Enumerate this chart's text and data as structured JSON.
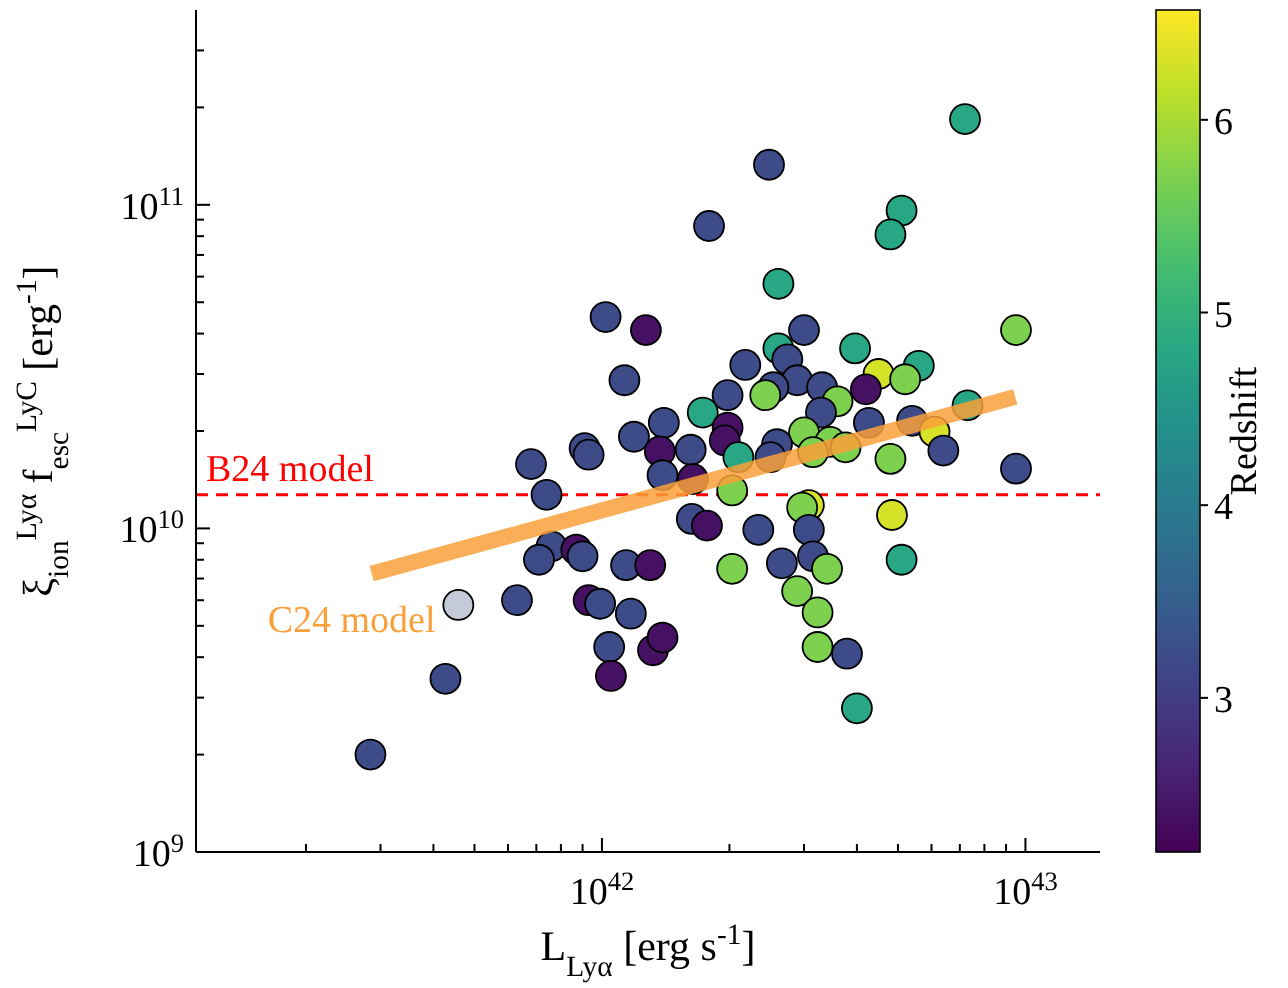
{
  "chart_data": {
    "type": "scatter",
    "xlabel": "L$_{Lyα}$ [erg s$^{-1}$]",
    "ylabel": "ξ$_{ion}$$^{Lyα}$ f$_{esc}$$^{LyC}$ [erg$^{-1}$]",
    "clabel": "Redshift",
    "log": "xy",
    "grid": false,
    "legend": false,
    "xlim": [
      1.1e+41,
      1.5e+43
    ],
    "ylim": [
      1000000000.0,
      400000000000.0
    ],
    "clim": [
      2.2,
      6.57
    ],
    "cticks": [
      3,
      4,
      5,
      6
    ],
    "xticks": [
      {
        "value": 2e+41,
        "label": null
      },
      {
        "value": 3e+41,
        "label": null
      },
      {
        "value": 4e+41,
        "label": null
      },
      {
        "value": 5e+41,
        "label": null
      },
      {
        "value": 6e+41,
        "label": null
      },
      {
        "value": 7e+41,
        "label": null
      },
      {
        "value": 8e+41,
        "label": null
      },
      {
        "value": 9e+41,
        "label": null
      },
      {
        "value": 1e+42,
        "label": "10$^{42}$"
      },
      {
        "value": 2e+42,
        "label": null
      },
      {
        "value": 3e+42,
        "label": null
      },
      {
        "value": 4e+42,
        "label": null
      },
      {
        "value": 5e+42,
        "label": null
      },
      {
        "value": 6e+42,
        "label": null
      },
      {
        "value": 7e+42,
        "label": null
      },
      {
        "value": 8e+42,
        "label": null
      },
      {
        "value": 9e+42,
        "label": null
      },
      {
        "value": 1e+43,
        "label": "10$^{43}$"
      }
    ],
    "yticks": [
      {
        "value": 1000000000.0,
        "label": "10$^{9}$"
      },
      {
        "value": 2000000000.0,
        "label": null
      },
      {
        "value": 3000000000.0,
        "label": null
      },
      {
        "value": 4000000000.0,
        "label": null
      },
      {
        "value": 5000000000.0,
        "label": null
      },
      {
        "value": 6000000000.0,
        "label": null
      },
      {
        "value": 7000000000.0,
        "label": null
      },
      {
        "value": 8000000000.0,
        "label": null
      },
      {
        "value": 9000000000.0,
        "label": null
      },
      {
        "value": 10000000000.0,
        "label": "10$^{10}$"
      },
      {
        "value": 20000000000.0,
        "label": null
      },
      {
        "value": 30000000000.0,
        "label": null
      },
      {
        "value": 40000000000.0,
        "label": null
      },
      {
        "value": 50000000000.0,
        "label": null
      },
      {
        "value": 60000000000.0,
        "label": null
      },
      {
        "value": 70000000000.0,
        "label": null
      },
      {
        "value": 80000000000.0,
        "label": null
      },
      {
        "value": 90000000000.0,
        "label": null
      },
      {
        "value": 100000000000.0,
        "label": "10$^{11}$"
      },
      {
        "value": 200000000000.0,
        "label": null
      },
      {
        "value": 300000000000.0,
        "label": null
      }
    ],
    "ref_lines": [
      {
        "axis": "y",
        "value": 12700000000.0,
        "label": "B24 model",
        "color": "#ff0000",
        "line_style": "dashed"
      }
    ],
    "series": [
      {
        "type": "scatter",
        "marker": "circle",
        "x": [
          7.2e+42,
          2.48e+42,
          1.79e+42,
          5.1e+42,
          4.8e+42,
          2.61e+42,
          1.02e+42,
          1.13e+42,
          1.27e+42,
          1.19e+42,
          9.1e+41,
          9.3e+41,
          6.8e+41,
          7.4e+41,
          7.6e+41,
          7.1e+41,
          8.7e+41,
          9e+41,
          1.14e+42,
          3e+42,
          2.61e+42,
          2.18e+42,
          2.74e+42,
          3.96e+42,
          2.89e+42,
          2.54e+42,
          2.43e+42,
          1.98e+42,
          3.31e+42,
          4.5e+42,
          5.6e+42,
          5.2e+42,
          4.2e+42,
          3.6e+42,
          3.29e+42,
          1.73e+42,
          1.4e+42,
          1.98e+42,
          1.95e+42,
          1.37e+42,
          1.62e+42,
          3e+42,
          4.27e+42,
          5.4e+42,
          7.3e+42,
          9.5e+42,
          9.5e+42,
          6.1e+42,
          6.4e+42,
          3.46e+42,
          3.76e+42,
          2.59e+42,
          2.5e+42,
          3.15e+42,
          2.1e+42,
          4.8e+42,
          1.39e+42,
          1.64e+42,
          2.03e+42,
          3.08e+42,
          2.97e+42,
          4.84e+42,
          1.63e+42,
          1.77e+42,
          2.34e+42,
          3.08e+42,
          1.3e+42,
          2.03e+42,
          2.66e+42,
          3.15e+42,
          3.4e+42,
          5.1e+42,
          4.58e+41,
          6.3e+41,
          9.3e+41,
          9.9e+41,
          1.17e+42,
          2.89e+42,
          3.23e+42,
          1.04e+42,
          1.32e+42,
          1.39e+42,
          1.05e+42,
          3.23e+42,
          3.79e+42,
          4e+42,
          4.27e+41,
          2.84e+41
        ],
        "values": [
          184000000000.0,
          133000000000.0,
          86000000000.0,
          96000000000.0,
          81000000000.0,
          57000000000.0,
          45000000000.0,
          28700000000.0,
          41000000000.0,
          19200000000.0,
          17700000000.0,
          16900000000.0,
          15800000000.0,
          12700000000.0,
          8800000000.0,
          8000000000.0,
          8600000000.0,
          8200000000.0,
          7700000000.0,
          41000000000.0,
          36000000000.0,
          32000000000.0,
          33300000000.0,
          36000000000.0,
          28700000000.0,
          27300000000.0,
          25800000000.0,
          25800000000.0,
          27300000000.0,
          30000000000.0,
          31800000000.0,
          28900000000.0,
          26900000000.0,
          24700000000.0,
          22800000000.0,
          22800000000.0,
          21200000000.0,
          20500000000.0,
          18700000000.0,
          17300000000.0,
          17500000000.0,
          19800000000.0,
          21200000000.0,
          21500000000.0,
          24000000000.0,
          41000000000.0,
          15300000000.0,
          19900000000.0,
          17400000000.0,
          18500000000.0,
          17800000000.0,
          18200000000.0,
          16600000000.0,
          17200000000.0,
          16600000000.0,
          16400000000.0,
          14600000000.0,
          14200000000.0,
          13100000000.0,
          11800000000.0,
          11600000000.0,
          11000000000.0,
          10700000000.0,
          10200000000.0,
          9900000000.0,
          9900000000.0,
          7700000000.0,
          7500000000.0,
          7800000000.0,
          8200000000.0,
          7500000000.0,
          8000000000.0,
          5800000000.0,
          6000000000.0,
          6000000000.0,
          5850000000.0,
          5450000000.0,
          6400000000.0,
          5500000000.0,
          4300000000.0,
          4200000000.0,
          4600000000.0,
          3500000000.0,
          4300000000.0,
          4100000000.0,
          2780000000.0,
          3430000000.0,
          2000000000.0
        ],
        "cvalues": [
          4.8,
          3.2,
          3.2,
          4.8,
          4.8,
          4.8,
          3.2,
          3.2,
          2.4,
          3.2,
          3.2,
          3.2,
          3.2,
          3.2,
          3.2,
          3.2,
          2.4,
          3.2,
          3.2,
          3.2,
          4.8,
          3.2,
          3.2,
          4.8,
          3.2,
          3.2,
          5.7,
          3.2,
          3.2,
          6.3,
          4.8,
          5.7,
          2.4,
          5.7,
          3.2,
          4.8,
          3.2,
          2.4,
          2.4,
          2.4,
          3.2,
          5.7,
          3.2,
          3.2,
          4.8,
          5.7,
          3.2,
          6.3,
          3.2,
          5.7,
          5.7,
          3.2,
          3.2,
          5.7,
          4.8,
          5.7,
          3.2,
          2.4,
          5.7,
          6.3,
          5.7,
          6.3,
          3.2,
          2.4,
          3.2,
          3.2,
          2.4,
          5.7,
          3.2,
          3.2,
          5.7,
          4.8,
          null,
          3.2,
          2.4,
          3.2,
          3.2,
          5.7,
          5.7,
          3.2,
          2.4,
          2.4,
          2.4,
          5.7,
          3.2,
          4.8,
          3.2,
          3.2
        ],
        "colors": [
          null,
          null,
          null,
          null,
          null,
          null,
          null,
          null,
          null,
          null,
          null,
          null,
          null,
          null,
          null,
          null,
          null,
          null,
          null,
          null,
          null,
          null,
          null,
          null,
          null,
          null,
          null,
          null,
          null,
          null,
          null,
          null,
          null,
          null,
          null,
          null,
          null,
          null,
          null,
          null,
          null,
          null,
          null,
          null,
          null,
          null,
          null,
          null,
          null,
          null,
          null,
          null,
          null,
          null,
          null,
          null,
          null,
          null,
          null,
          null,
          null,
          null,
          null,
          null,
          null,
          null,
          null,
          null,
          null,
          null,
          null,
          null,
          "#c5cad8",
          null,
          null,
          null,
          null,
          null,
          null,
          null,
          null,
          null,
          null,
          null,
          null,
          null,
          null,
          null
        ]
      },
      {
        "type": "line",
        "name": "C24 model",
        "color": "#f9a03a",
        "marker": "none",
        "x": [
          2.86e+41,
          9.46e+42
        ],
        "values": [
          7250000000.0,
          25500000000.0
        ]
      }
    ]
  }
}
